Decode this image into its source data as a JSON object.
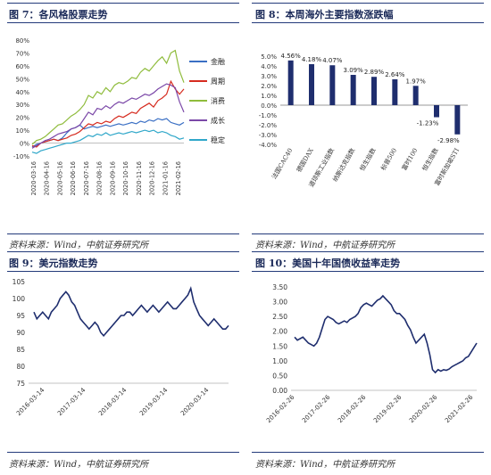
{
  "panels": {
    "fig7": {
      "title": "图 7：各风格股票走势",
      "source": "资料来源：Wind，中航证券研究所"
    },
    "fig8": {
      "title": "图 8：本周海外主要指数涨跌幅",
      "source": "资料来源：Wind，中航证券研究所"
    },
    "fig9": {
      "title": "图 9：美元指数走势",
      "source": "资料来源：Wind，中航证券研究所"
    },
    "fig10": {
      "title": "图 10：美国十年国债收益率走势",
      "source": "资料来源：Wind，中航证券研究所"
    }
  },
  "colors": {
    "navy": "#1f2e6e",
    "finance": "#3a6fc4",
    "cyclical": "#d62b1f",
    "consumer": "#8fbc3c",
    "growth": "#7b48a8",
    "stable": "#2fa7c9",
    "bar": "#1f2e6e",
    "heading": "#1b2a59"
  },
  "chart_data": [
    {
      "id": "fig7",
      "type": "line",
      "x_ticks": [
        "2020-03-16",
        "2020-04-16",
        "2020-05-16",
        "2020-06-16",
        "2020-07-16",
        "2020-08-16",
        "2020-09-16",
        "2020-10-16",
        "2020-11-16",
        "2020-12-16",
        "2021-01-16",
        "2021-02-16"
      ],
      "y_ticks": [
        "80%",
        "70%",
        "60%",
        "50%",
        "40%",
        "30%",
        "20%",
        "10%",
        "0%",
        "-10%"
      ],
      "ylim": [
        -10,
        80
      ],
      "legend_position": "right",
      "series": [
        {
          "name": "金融",
          "color": "#3a6fc4",
          "values": [
            -3,
            -1,
            0,
            1,
            2,
            3,
            2,
            4,
            8,
            11,
            12,
            14,
            11,
            12,
            13,
            12,
            13,
            14,
            13,
            14,
            15,
            14,
            15,
            16,
            15,
            17,
            16,
            18,
            17,
            19,
            18,
            19,
            16,
            15,
            14,
            16
          ]
        },
        {
          "name": "周期",
          "color": "#d62b1f",
          "values": [
            -2,
            -3,
            0,
            1,
            2,
            3,
            2,
            3,
            4,
            6,
            7,
            9,
            12,
            15,
            14,
            16,
            15,
            17,
            16,
            19,
            21,
            20,
            22,
            24,
            23,
            27,
            29,
            31,
            28,
            33,
            35,
            38,
            48,
            42,
            38,
            42
          ]
        },
        {
          "name": "消费",
          "color": "#8fbc3c",
          "values": [
            -1,
            2,
            3,
            5,
            8,
            11,
            14,
            15,
            18,
            21,
            23,
            26,
            30,
            37,
            35,
            40,
            38,
            43,
            40,
            45,
            47,
            46,
            48,
            51,
            50,
            55,
            58,
            56,
            60,
            64,
            67,
            62,
            70,
            72,
            56,
            47
          ]
        },
        {
          "name": "成长",
          "color": "#7b48a8",
          "values": [
            -4,
            -2,
            0,
            2,
            3,
            5,
            7,
            8,
            9,
            11,
            12,
            14,
            19,
            24,
            22,
            27,
            26,
            29,
            27,
            30,
            32,
            31,
            33,
            35,
            34,
            36,
            38,
            37,
            39,
            42,
            44,
            46,
            45,
            43,
            32,
            24
          ]
        },
        {
          "name": "稳定",
          "color": "#2fa7c9",
          "values": [
            -7,
            -8,
            -6,
            -5,
            -4,
            -3,
            -2,
            -1,
            0,
            0,
            1,
            2,
            4,
            6,
            5,
            7,
            6,
            8,
            6,
            7,
            8,
            7,
            8,
            9,
            8,
            9,
            10,
            9,
            10,
            8,
            9,
            8,
            6,
            5,
            3,
            4
          ]
        }
      ]
    },
    {
      "id": "fig8",
      "type": "bar",
      "categories": [
        "法国CAC40",
        "德国DAX",
        "道琼斯工业指数",
        "纳斯达克指数",
        "恒生指数",
        "标普500",
        "富时100",
        "恒生指数",
        "富时新加坡STI"
      ],
      "values": [
        4.56,
        4.18,
        4.07,
        3.09,
        2.89,
        2.64,
        1.97,
        -1.23,
        -2.98
      ],
      "data_labels": [
        "4.56%",
        "4.18%",
        "4.07%",
        "3.09%",
        "2.89%",
        "2.64%",
        "1.97%",
        "-1.23%",
        "-2.98%"
      ],
      "y_ticks": [
        "5.0%",
        "4.0%",
        "3.0%",
        "2.0%",
        "1.0%",
        "0.0%",
        "-1.0%",
        "-2.0%",
        "-3.0%",
        "-4.0%"
      ],
      "ylim": [
        -4,
        5
      ]
    },
    {
      "id": "fig9",
      "type": "line",
      "x_ticks": [
        "2016-03-14",
        "2017-03-14",
        "2018-03-14",
        "2019-03-14",
        "2020-03-14"
      ],
      "y_ticks": [
        "105",
        "100",
        "95",
        "90",
        "85",
        "80",
        "75"
      ],
      "ylim": [
        75,
        105
      ],
      "series": [
        {
          "name": "",
          "color": "#1f2e6e",
          "values": [
            96,
            94,
            95,
            96,
            95,
            94,
            96,
            97,
            98,
            100,
            101,
            102,
            101,
            99,
            98,
            96,
            94,
            93,
            92,
            91,
            92,
            93,
            92,
            90,
            89,
            90,
            91,
            92,
            93,
            94,
            95,
            95,
            96,
            96,
            95,
            96,
            97,
            98,
            97,
            96,
            97,
            98,
            97,
            96,
            97,
            98,
            99,
            98,
            97,
            97,
            98,
            99,
            100,
            101,
            103,
            99,
            97,
            95,
            94,
            93,
            92,
            93,
            94,
            93,
            92,
            91,
            91,
            92
          ]
        }
      ]
    },
    {
      "id": "fig10",
      "type": "line",
      "x_ticks": [
        "2016-02-26",
        "2017-02-26",
        "2018-02-26",
        "2019-02-26",
        "2020-02-26",
        "2021-02-26"
      ],
      "y_ticks": [
        "3.50",
        "3.00",
        "2.50",
        "2.00",
        "1.50",
        "1.00",
        "0.50",
        "0.00"
      ],
      "ylim": [
        0,
        3.5
      ],
      "series": [
        {
          "name": "",
          "color": "#1f2e6e",
          "values": [
            1.8,
            1.7,
            1.75,
            1.8,
            1.7,
            1.6,
            1.55,
            1.5,
            1.6,
            1.8,
            2.1,
            2.4,
            2.5,
            2.45,
            2.4,
            2.3,
            2.25,
            2.3,
            2.35,
            2.3,
            2.4,
            2.45,
            2.5,
            2.6,
            2.8,
            2.9,
            2.95,
            2.9,
            2.85,
            2.95,
            3.05,
            3.1,
            3.2,
            3.1,
            3.0,
            2.9,
            2.7,
            2.6,
            2.6,
            2.5,
            2.4,
            2.2,
            2.05,
            1.8,
            1.6,
            1.7,
            1.8,
            1.9,
            1.6,
            1.2,
            0.7,
            0.6,
            0.7,
            0.65,
            0.7,
            0.68,
            0.72,
            0.8,
            0.85,
            0.9,
            0.95,
            1.0,
            1.1,
            1.15,
            1.3,
            1.45,
            1.6
          ]
        }
      ]
    }
  ]
}
